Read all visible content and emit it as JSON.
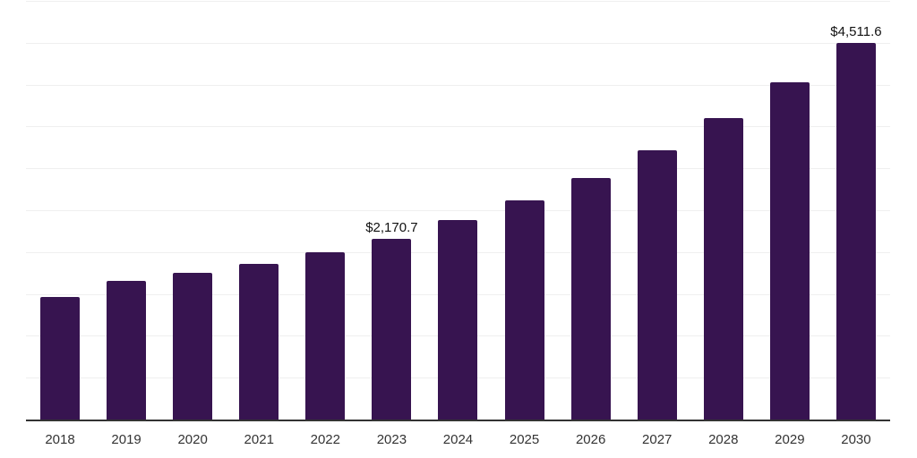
{
  "chart_data": {
    "type": "bar",
    "categories": [
      "2018",
      "2019",
      "2020",
      "2021",
      "2022",
      "2023",
      "2024",
      "2025",
      "2026",
      "2027",
      "2028",
      "2029",
      "2030"
    ],
    "values": [
      1475,
      1665,
      1760,
      1870,
      2010,
      2170.7,
      2390,
      2625,
      2900,
      3230,
      3615,
      4040,
      4511.6
    ],
    "value_labels": [
      "",
      "",
      "",
      "",
      "",
      "$2,170.7",
      "",
      "",
      "",
      "",
      "",
      "",
      "$4,511.6"
    ],
    "ylim": [
      0,
      5000
    ],
    "gridline_step": 500,
    "xlabel": "",
    "ylabel": "",
    "legend": "none",
    "grid": "horizontal",
    "colors": {
      "bar": "#371450",
      "gridline": "#efefef",
      "axis_line": "#333333",
      "tick_text": "#333333",
      "value_label_text": "#111111",
      "background": "#ffffff"
    }
  }
}
